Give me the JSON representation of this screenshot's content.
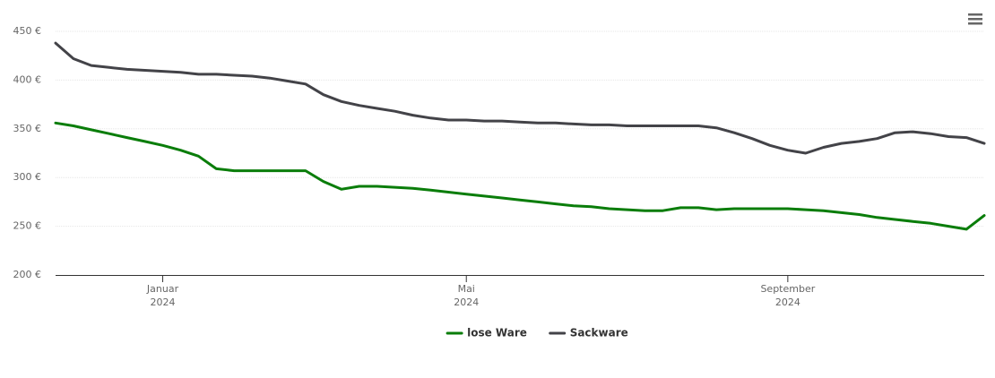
{
  "chart_data": {
    "type": "line",
    "categories": [
      null,
      null,
      null,
      null,
      null,
      null,
      "Januar 2024",
      null,
      null,
      null,
      null,
      null,
      null,
      null,
      null,
      null,
      null,
      null,
      null,
      null,
      null,
      null,
      null,
      "Mai 2024",
      null,
      null,
      null,
      null,
      null,
      null,
      null,
      null,
      null,
      null,
      null,
      null,
      null,
      null,
      null,
      null,
      null,
      "September 2024",
      null,
      null,
      null,
      null,
      null,
      null,
      null,
      null,
      null,
      null,
      null
    ],
    "series": [
      {
        "name": "lose Ware",
        "color": "#0a7d0a",
        "values": [
          356,
          353,
          349,
          345,
          341,
          337,
          333,
          328,
          322,
          309,
          307,
          307,
          307,
          307,
          307,
          296,
          288,
          291,
          291,
          290,
          289,
          287,
          285,
          283,
          281,
          279,
          277,
          275,
          273,
          271,
          270,
          268,
          267,
          266,
          266,
          269,
          269,
          267,
          268,
          268,
          268,
          268,
          267,
          266,
          264,
          262,
          259,
          257,
          255,
          253,
          250,
          247,
          261
        ]
      },
      {
        "name": "Sackware",
        "color": "#434348",
        "values": [
          438,
          422,
          415,
          413,
          411,
          410,
          409,
          408,
          406,
          406,
          405,
          404,
          402,
          399,
          396,
          385,
          378,
          374,
          371,
          368,
          364,
          361,
          359,
          359,
          358,
          358,
          357,
          356,
          356,
          355,
          354,
          354,
          353,
          353,
          353,
          353,
          353,
          351,
          346,
          340,
          333,
          328,
          325,
          331,
          335,
          337,
          340,
          346,
          347,
          345,
          342,
          341,
          335
        ]
      }
    ],
    "ylim": [
      200,
      450
    ],
    "yticks": [
      {
        "value": 200,
        "label": "200 €"
      },
      {
        "value": 250,
        "label": "250 €"
      },
      {
        "value": 300,
        "label": "300 €"
      },
      {
        "value": 350,
        "label": "350 €"
      },
      {
        "value": 400,
        "label": "400 €"
      },
      {
        "value": 450,
        "label": "450 €"
      }
    ],
    "grid": true,
    "legend": "bottom"
  }
}
